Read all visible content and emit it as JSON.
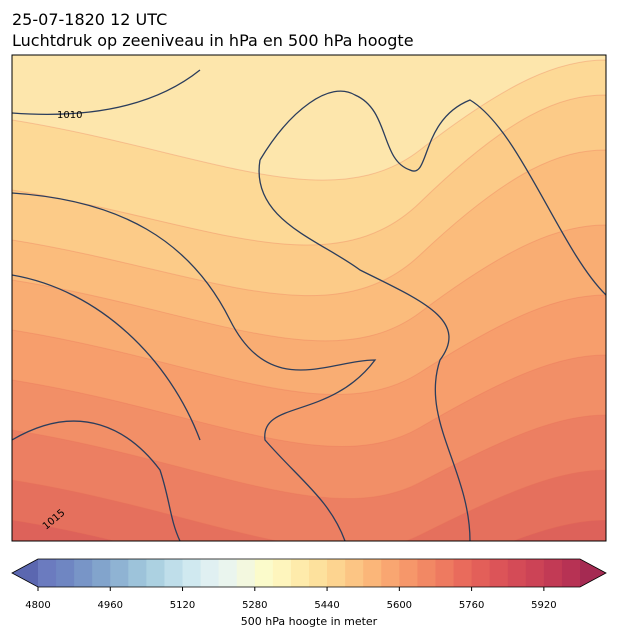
{
  "header": {
    "title": "25-07-1820 12 UTC",
    "subtitle": "Luchtdruk op zeeniveau in hPa en 500 hPa hoogte"
  },
  "map": {
    "isobar_labels": [
      1010,
      1015
    ]
  },
  "colorbar": {
    "label": "500 hPa hoogte in meter",
    "lim": [
      4800,
      6000
    ],
    "ticks": [
      4800,
      4960,
      5120,
      5280,
      5440,
      5600,
      5760,
      5920
    ],
    "colors": [
      "#6b7bbf",
      "#6f86c2",
      "#7895c7",
      "#82a4cc",
      "#8fb3d3",
      "#9dc3da",
      "#acd1e1",
      "#bfdeea",
      "#d0e9f0",
      "#e0f0f2",
      "#eaf5ee",
      "#f3f8df",
      "#fbfbcb",
      "#fef5bd",
      "#feebab",
      "#fde19d",
      "#fdd490",
      "#fcc584",
      "#fbb679",
      "#f9a671",
      "#f6976a",
      "#f28864",
      "#ee7a60",
      "#e96b5c",
      "#e35f59",
      "#dc5458",
      "#d44b57",
      "#cc4356",
      "#c23a55",
      "#b73254"
    ],
    "extend_colors": [
      "#5b67b0",
      "#a52a52"
    ]
  }
}
